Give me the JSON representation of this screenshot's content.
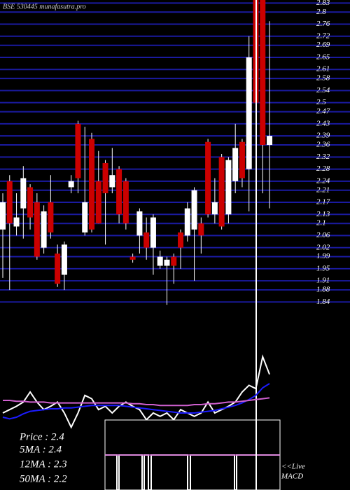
{
  "chart_data": [
    {
      "type": "candlestick",
      "title": "BSE 530445 munafasutra.pro",
      "open": [
        2.08,
        2.24,
        2.09,
        2.15,
        2.22,
        2.17,
        2.02,
        2.17,
        2.0,
        1.93,
        2.22,
        2.43,
        2.07,
        2.38,
        2.24,
        2.3,
        2.22,
        2.28,
        2.24,
        1.99,
        2.06,
        2.07,
        2.02,
        1.96,
        1.96,
        1.99,
        2.07,
        2.06,
        2.08,
        2.1,
        2.37,
        2.13,
        2.32,
        2.13,
        2.24,
        2.37,
        2.28,
        2.84,
        2.84,
        2.36
      ],
      "high": [
        2.2,
        2.26,
        2.2,
        2.29,
        2.23,
        2.2,
        2.16,
        2.26,
        2.03,
        2.04,
        2.26,
        2.44,
        2.42,
        2.4,
        2.34,
        2.31,
        2.35,
        2.29,
        2.25,
        2.0,
        2.15,
        2.12,
        2.13,
        2.01,
        1.99,
        2.0,
        2.08,
        2.17,
        2.22,
        2.12,
        2.38,
        2.25,
        2.33,
        2.32,
        2.43,
        2.38,
        2.72,
        2.84,
        2.84,
        2.77
      ],
      "low": [
        1.92,
        1.88,
        2.06,
        2.05,
        2.08,
        1.98,
        2.0,
        2.05,
        1.89,
        1.88,
        2.2,
        2.2,
        2.06,
        2.07,
        2.1,
        2.03,
        2.2,
        2.1,
        2.08,
        1.97,
        2.0,
        1.98,
        1.93,
        1.95,
        1.83,
        1.9,
        1.95,
        2.04,
        1.91,
        2.0,
        2.12,
        2.1,
        2.08,
        2.1,
        2.2,
        2.22,
        2.14,
        2.15,
        2.2,
        2.15
      ],
      "close": [
        2.17,
        2.1,
        2.12,
        2.25,
        2.12,
        1.99,
        2.14,
        2.07,
        1.9,
        2.03,
        2.24,
        2.25,
        2.17,
        2.08,
        2.1,
        2.2,
        2.26,
        2.13,
        2.1,
        1.98,
        2.14,
        2.02,
        2.12,
        1.99,
        1.98,
        1.96,
        2.02,
        2.15,
        2.21,
        2.06,
        2.13,
        2.17,
        2.09,
        2.31,
        2.35,
        2.25,
        2.65,
        2.5,
        2.36,
        2.39
      ],
      "up_color": "#ffffff",
      "down_color": "#cc0000",
      "grid_color": "#1a1aa0",
      "ylim": [
        1.82,
        2.84
      ],
      "yticks": [
        2.83,
        2.8,
        2.76,
        2.72,
        2.69,
        2.65,
        2.61,
        2.58,
        2.54,
        2.5,
        2.47,
        2.43,
        2.39,
        2.36,
        2.32,
        2.28,
        2.24,
        2.21,
        2.17,
        2.13,
        2.1,
        2.06,
        2.02,
        1.99,
        1.95,
        1.91,
        1.88,
        1.84
      ],
      "grid": true
    },
    {
      "type": "line",
      "ylim": [
        0,
        100
      ],
      "series": [
        {
          "color": "#ffffff",
          "values": [
            25,
            29,
            33,
            38,
            50,
            38,
            29,
            33,
            38,
            25,
            8,
            25,
            46,
            42,
            29,
            33,
            25,
            33,
            38,
            33,
            29,
            17,
            25,
            21,
            25,
            17,
            29,
            25,
            21,
            25,
            38,
            25,
            29,
            33,
            38,
            50,
            58,
            54,
            92,
            71
          ]
        },
        {
          "color": "#1c1cff",
          "values": [
            20,
            18,
            20,
            24,
            27,
            28,
            29,
            30,
            30,
            31,
            31,
            32,
            33,
            34,
            34,
            34,
            34,
            34,
            33,
            32,
            31,
            30,
            29,
            28,
            27,
            26,
            25,
            25,
            25,
            26,
            27,
            28,
            30,
            32,
            34,
            37,
            41,
            46,
            55,
            60
          ]
        },
        {
          "color": "#d060d0",
          "values": [
            40,
            40,
            39,
            39,
            38,
            38,
            38,
            37,
            37,
            37,
            37,
            37,
            37,
            37,
            37,
            37,
            37,
            37,
            37,
            36,
            36,
            35,
            35,
            34,
            34,
            34,
            34,
            34,
            35,
            35,
            36,
            36,
            37,
            38,
            38,
            39,
            40,
            41,
            42,
            43
          ]
        }
      ]
    },
    {
      "type": "text",
      "lines": [
        "Price : 2.4",
        "5MA : 2.4",
        "12MA : 2.3",
        "50MA : 2.2"
      ],
      "live": "<<Live",
      "macd": "MACD"
    }
  ]
}
